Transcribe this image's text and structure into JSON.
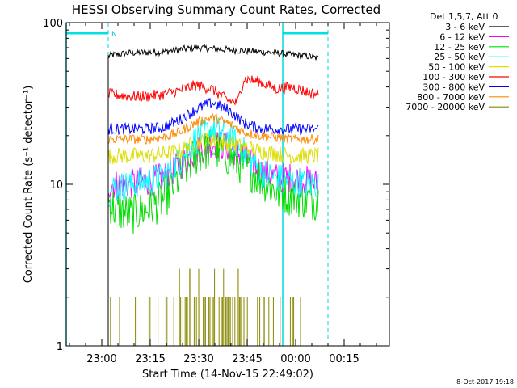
{
  "chart_data": {
    "type": "line",
    "title": "HESSI Observing Summary Count Rates, Corrected",
    "xlabel": "Start Time (14-Nov-15 22:49:02)",
    "ylabel": "Corrected Count Rate (s⁻¹ detector⁻¹)",
    "yscale": "log",
    "ylim": [
      1,
      100
    ],
    "xlim_minutes": [
      0,
      100
    ],
    "x_ticks": [
      {
        "minute": 11,
        "label": "23:00"
      },
      {
        "minute": 26,
        "label": "23:15"
      },
      {
        "minute": 41,
        "label": "23:30"
      },
      {
        "minute": 56,
        "label": "23:45"
      },
      {
        "minute": 71,
        "label": "00:00"
      },
      {
        "minute": 86,
        "label": "00:15"
      }
    ],
    "y_ticks": [
      {
        "value": 1,
        "label": "1"
      },
      {
        "value": 10,
        "label": "10"
      },
      {
        "value": 100,
        "label": "100"
      }
    ],
    "legend_header": "Det 1,5,7, Att 0",
    "legend_placement": "right, outside plot",
    "series": [
      {
        "name": "3 - 6 keV",
        "color": "#000000",
        "x": [
          13,
          14,
          20,
          30,
          35,
          40,
          45,
          50,
          55,
          60,
          65,
          70,
          75,
          78
        ],
        "y": [
          62,
          63,
          65,
          66,
          68,
          70,
          69,
          68,
          67,
          66,
          65,
          63,
          62,
          60
        ]
      },
      {
        "name": "6 - 12 keV",
        "color": "#ff00ff",
        "x": [
          13,
          15,
          20,
          25,
          30,
          35,
          40,
          45,
          50,
          55,
          60,
          65,
          70,
          75,
          78
        ],
        "y": [
          10,
          10,
          10,
          10.5,
          11,
          13,
          16,
          18,
          17,
          15,
          12,
          11,
          11,
          10.5,
          10
        ]
      },
      {
        "name": "12 - 25 keV",
        "color": "#00dd00",
        "x": [
          13,
          15,
          20,
          25,
          30,
          35,
          40,
          45,
          50,
          55,
          60,
          65,
          70,
          75,
          78
        ],
        "y": [
          8,
          7,
          6.5,
          7,
          8,
          11,
          15,
          17,
          15,
          13,
          11,
          9,
          8.5,
          8,
          8
        ]
      },
      {
        "name": "25 - 50 keV",
        "color": "#00ffff",
        "x": [
          13,
          15,
          20,
          25,
          30,
          35,
          40,
          45,
          50,
          55,
          60,
          65,
          70,
          75,
          78
        ],
        "y": [
          9,
          9.5,
          10,
          10.5,
          11,
          14,
          19,
          22,
          20,
          16,
          12,
          11,
          10.5,
          10,
          10
        ]
      },
      {
        "name": "50 - 100 keV",
        "color": "#dddd00",
        "x": [
          13,
          15,
          20,
          25,
          30,
          35,
          40,
          45,
          50,
          55,
          60,
          65,
          70,
          75,
          78
        ],
        "y": [
          15,
          15,
          15,
          15,
          15.5,
          16,
          18,
          19,
          18,
          17,
          16,
          15.5,
          15,
          15,
          15
        ]
      },
      {
        "name": "100 - 300 keV",
        "color": "#ff0000",
        "x": [
          13,
          15,
          20,
          25,
          30,
          35,
          40,
          45,
          50,
          53,
          55,
          60,
          65,
          70,
          75,
          78
        ],
        "y": [
          36,
          36,
          35,
          35,
          36,
          38,
          41,
          39,
          33,
          32,
          45,
          43,
          39,
          40,
          37,
          36
        ]
      },
      {
        "name": "300 - 800 keV",
        "color": "#0000ff",
        "x": [
          13,
          15,
          20,
          25,
          30,
          35,
          40,
          45,
          50,
          55,
          60,
          65,
          70,
          75,
          78
        ],
        "y": [
          22,
          22,
          22,
          22,
          22.5,
          25,
          29,
          32,
          29,
          24,
          22,
          22,
          22,
          22,
          22
        ]
      },
      {
        "name": "800 - 7000 keV",
        "color": "#ff8800",
        "x": [
          13,
          15,
          20,
          25,
          30,
          35,
          40,
          45,
          50,
          55,
          60,
          65,
          70,
          75,
          78
        ],
        "y": [
          19,
          19,
          19,
          19,
          19.5,
          21,
          24,
          26,
          24,
          21,
          20,
          19.5,
          19,
          19,
          19
        ]
      },
      {
        "name": "7000 - 20000 keV",
        "color": "#888800",
        "x": [
          13,
          78
        ],
        "y": [
          1,
          1
        ]
      }
    ],
    "annotations": [
      {
        "type": "night_bar",
        "label": "N",
        "x_from_minute": 0,
        "x_to_minute": 13
      },
      {
        "type": "night_bar",
        "label": "",
        "x_from_minute": 67,
        "x_to_minute": 81
      }
    ],
    "grid": false
  },
  "footer": {
    "timestamp": "8-Oct-2017 19:18"
  }
}
